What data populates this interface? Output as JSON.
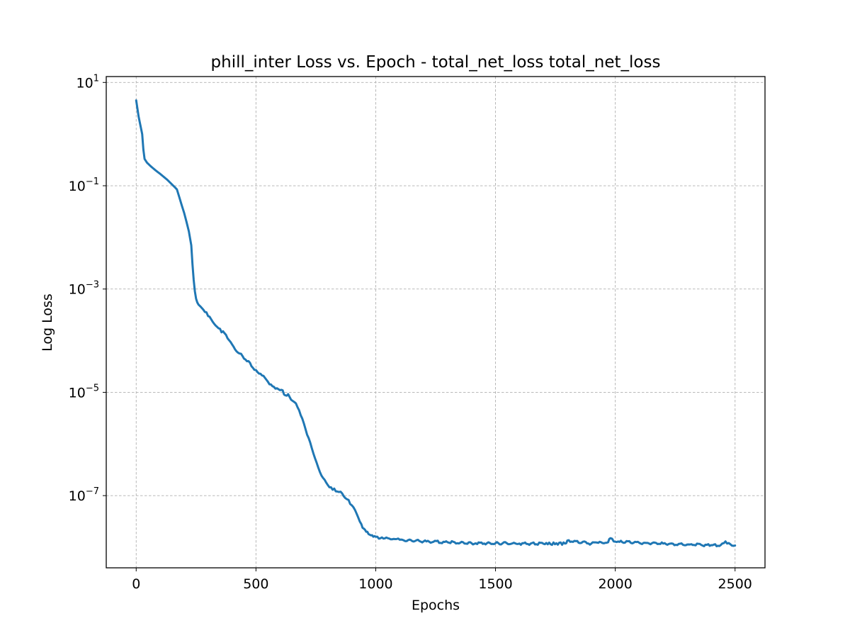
{
  "chart_data": {
    "type": "line",
    "title": "phill_inter Loss vs. Epoch - total_net_loss total_net_loss",
    "xlabel": "Epochs",
    "ylabel": "Log Loss",
    "yscale": "log",
    "xlim": [
      -125,
      2625
    ],
    "ylim": [
      4e-09,
      13
    ],
    "grid": true,
    "x_ticks": [
      0,
      500,
      1000,
      1500,
      2000,
      2500
    ],
    "x_tick_labels": [
      "0",
      "500",
      "1000",
      "1500",
      "2000",
      "2500"
    ],
    "y_ticks": [
      10,
      0.1,
      0.001,
      1e-05,
      1e-07
    ],
    "y_tick_labels": [
      {
        "base": "10",
        "exp": "1"
      },
      {
        "base": "10",
        "exp": "−1"
      },
      {
        "base": "10",
        "exp": "−3"
      },
      {
        "base": "10",
        "exp": "−5"
      },
      {
        "base": "10",
        "exp": "−7"
      }
    ],
    "colors": {
      "series": "#1f77b4"
    },
    "series": [
      {
        "name": "total_net_loss",
        "x": [
          0,
          10,
          20,
          25,
          30,
          35,
          45,
          60,
          80,
          100,
          130,
          160,
          170,
          180,
          190,
          200,
          210,
          220,
          230,
          235,
          240,
          245,
          250,
          255,
          260,
          270,
          280,
          300,
          350,
          400,
          450,
          500,
          550,
          600,
          640,
          660,
          680,
          700,
          720,
          740,
          760,
          780,
          800,
          820,
          840,
          860,
          880,
          900,
          920,
          940,
          950,
          960,
          970,
          980,
          990,
          1000,
          1020,
          1050,
          1100,
          1200,
          1300,
          1400,
          1500,
          1600,
          1700,
          1790,
          1800,
          1900,
          1970,
          1980,
          2000,
          2100,
          2200,
          2300,
          2400,
          2440,
          2460,
          2480,
          2500
        ],
        "y": [
          4.5,
          2.2,
          1.3,
          1.0,
          0.5,
          0.33,
          0.28,
          0.24,
          0.2,
          0.17,
          0.13,
          0.095,
          0.085,
          0.06,
          0.042,
          0.03,
          0.02,
          0.013,
          0.007,
          0.003,
          0.0015,
          0.0009,
          0.00065,
          0.00055,
          0.0005,
          0.00045,
          0.0004,
          0.0003,
          0.00017,
          8.5e-05,
          4.5e-05,
          2.7e-05,
          1.6e-05,
          1.1e-05,
          8.2e-06,
          6.5e-06,
          4.5e-06,
          2.5e-06,
          1.3e-06,
          6.5e-07,
          3.5e-07,
          2.2e-07,
          1.6e-07,
          1.3e-07,
          1.2e-07,
          1.1e-07,
          8.5e-08,
          6.5e-08,
          4.5e-08,
          2.8e-08,
          2.3e-08,
          2e-08,
          1.8e-08,
          1.7e-08,
          1.6e-08,
          1.6e-08,
          1.5e-08,
          1.5e-08,
          1.4e-08,
          1.3e-08,
          1.25e-08,
          1.2e-08,
          1.2e-08,
          1.18e-08,
          1.17e-08,
          1.18e-08,
          1.35e-08,
          1.18e-08,
          1.25e-08,
          1.5e-08,
          1.28e-08,
          1.22e-08,
          1.18e-08,
          1.13e-08,
          1.1e-08,
          1.1e-08,
          1.3e-08,
          1.15e-08,
          1.08e-08
        ]
      }
    ]
  }
}
